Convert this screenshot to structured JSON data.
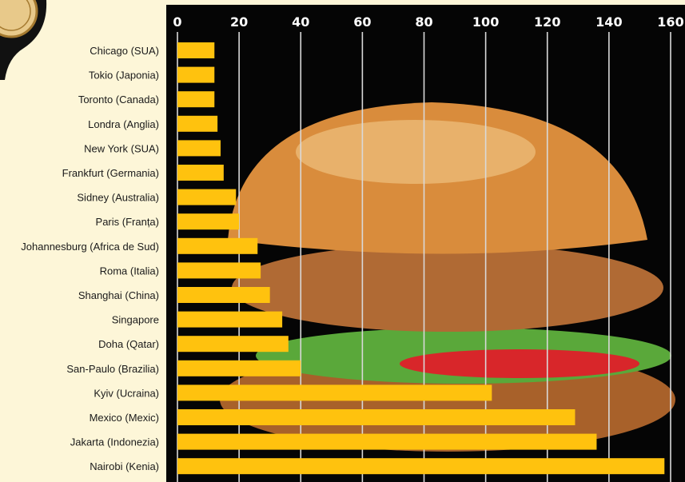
{
  "chart_data": {
    "type": "bar",
    "orientation": "horizontal",
    "title": "",
    "xlabel": "",
    "ylabel": "",
    "xlim": [
      0,
      160
    ],
    "x_ticks": [
      "0",
      "20",
      "40",
      "60",
      "80",
      "100",
      "120",
      "140",
      "160"
    ],
    "grid": true,
    "categories": [
      "Chicago (SUA)",
      "Tokio (Japonia)",
      "Toronto (Canada)",
      "Londra (Anglia)",
      "New York (SUA)",
      "Frankfurt (Germania)",
      "Sidney (Australia)",
      "Paris (Franța)",
      "Johannesburg (Africa de Sud)",
      "Roma (Italia)",
      "Shanghai (China)",
      "Singapore",
      "Doha (Qatar)",
      "San-Paulo (Brazilia)",
      "Kyiv (Ucraina)",
      "Mexico (Mexic)",
      "Jakarta (Indonezia)",
      "Nairobi (Kenia)"
    ],
    "values": [
      12,
      12,
      12,
      13,
      14,
      15,
      19,
      20,
      26,
      27,
      30,
      34,
      36,
      40,
      102,
      129,
      136,
      158
    ],
    "bar_color": "#ffc20e",
    "background_color": "#050505"
  },
  "colors": {
    "page": "#fdf6d8",
    "tick_text": "#ffffff",
    "label_text": "#1a1a1a",
    "gridline": "#d9d9d9",
    "bun": "#d98c3c",
    "lettuce": "#5aa83a",
    "tomato": "#d8262a",
    "patty": "#b06a34"
  }
}
